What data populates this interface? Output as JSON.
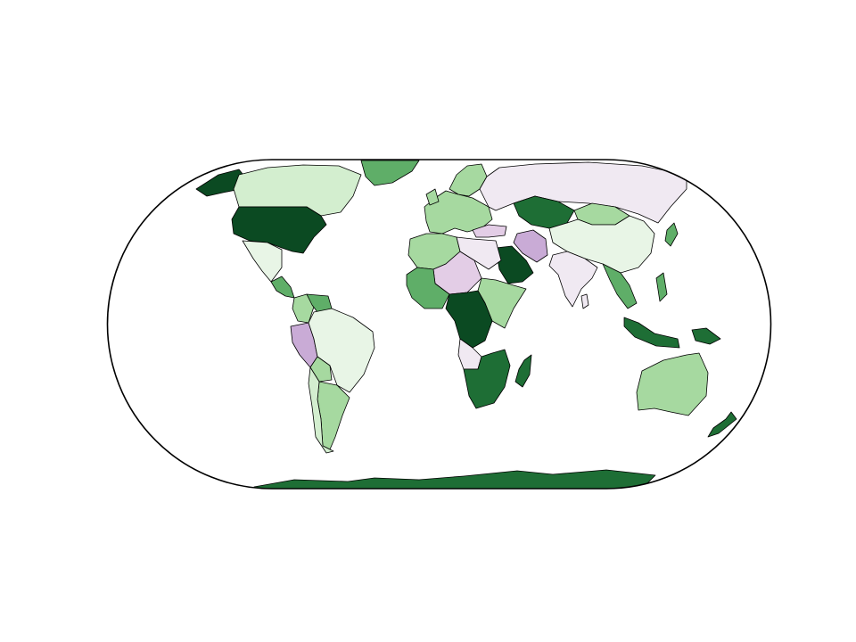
{
  "map": {
    "projection": "Eckert IV",
    "palette": {
      "dark_green": "#0b4a22",
      "green": "#1e6e35",
      "mid_green": "#5fae68",
      "light_green": "#a6d9a0",
      "pale_green": "#d3eecf",
      "very_pale_green": "#e8f5e6",
      "pale_purple": "#f0e9f2",
      "light_purple": "#e3cde6",
      "purple": "#c9abd6",
      "outline": "#000000",
      "background": "#ffffff"
    },
    "regions": [
      {
        "name": "greenland",
        "color": "mid_green"
      },
      {
        "name": "alaska",
        "color": "dark_green"
      },
      {
        "name": "canada",
        "color": "pale_green"
      },
      {
        "name": "united-states",
        "color": "dark_green"
      },
      {
        "name": "mexico",
        "color": "very_pale_green"
      },
      {
        "name": "central-america",
        "color": "mid_green"
      },
      {
        "name": "colombia",
        "color": "light_green"
      },
      {
        "name": "venezuela",
        "color": "mid_green"
      },
      {
        "name": "peru",
        "color": "purple"
      },
      {
        "name": "brazil",
        "color": "very_pale_green"
      },
      {
        "name": "bolivia",
        "color": "light_green"
      },
      {
        "name": "argentina",
        "color": "light_green"
      },
      {
        "name": "chile",
        "color": "pale_green"
      },
      {
        "name": "western-europe",
        "color": "light_green"
      },
      {
        "name": "scandinavia",
        "color": "light_green"
      },
      {
        "name": "russia",
        "color": "pale_purple"
      },
      {
        "name": "kazakhstan",
        "color": "green"
      },
      {
        "name": "iran",
        "color": "purple"
      },
      {
        "name": "saudi-arabia",
        "color": "dark_green"
      },
      {
        "name": "turkey",
        "color": "light_purple"
      },
      {
        "name": "china",
        "color": "very_pale_green"
      },
      {
        "name": "mongolia",
        "color": "light_green"
      },
      {
        "name": "india",
        "color": "pale_purple"
      },
      {
        "name": "southeast-asia",
        "color": "mid_green"
      },
      {
        "name": "indonesia",
        "color": "green"
      },
      {
        "name": "new-guinea",
        "color": "green"
      },
      {
        "name": "australia",
        "color": "light_green"
      },
      {
        "name": "new-zealand",
        "color": "green"
      },
      {
        "name": "north-africa-west",
        "color": "light_green"
      },
      {
        "name": "sahel",
        "color": "light_purple"
      },
      {
        "name": "egypt-libya",
        "color": "pale_purple"
      },
      {
        "name": "west-africa",
        "color": "mid_green"
      },
      {
        "name": "central-africa",
        "color": "dark_green"
      },
      {
        "name": "east-africa",
        "color": "light_green"
      },
      {
        "name": "southern-africa",
        "color": "green"
      },
      {
        "name": "angola",
        "color": "pale_purple"
      },
      {
        "name": "madagascar",
        "color": "green"
      },
      {
        "name": "antarctica",
        "color": "green"
      }
    ]
  }
}
